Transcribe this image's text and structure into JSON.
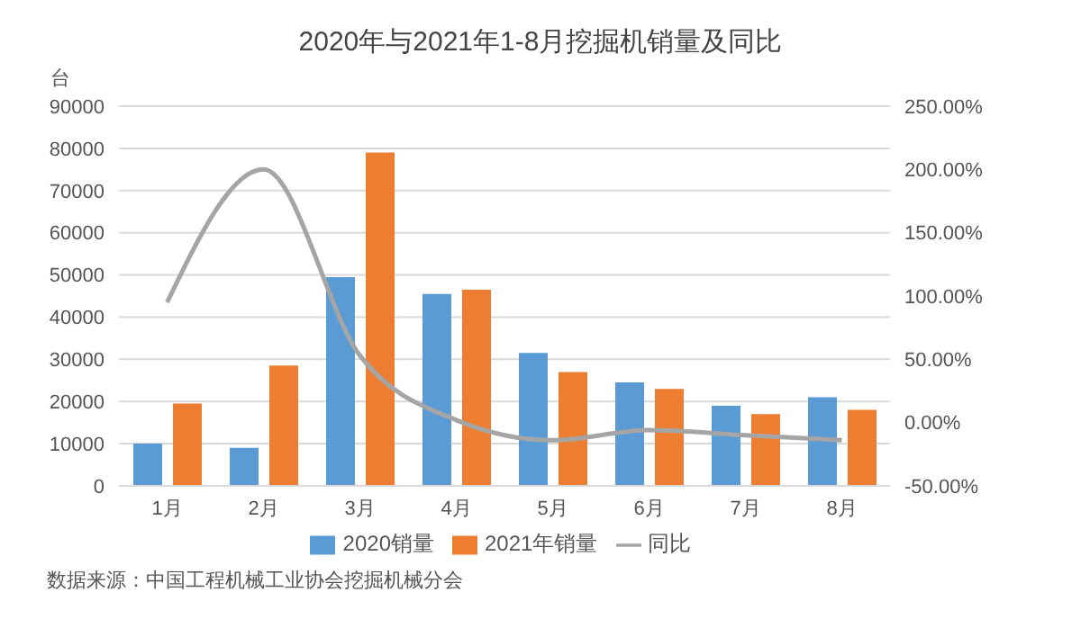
{
  "chart_data": {
    "type": "bar",
    "title": "2020年与2021年1-8月挖掘机销量及同比",
    "ylabel": "台",
    "categories": [
      "1月",
      "2月",
      "3月",
      "4月",
      "5月",
      "6月",
      "7月",
      "8月"
    ],
    "series": [
      {
        "name": "2020销量",
        "color": "#5b9bd5",
        "values": [
          10000,
          9000,
          49500,
          45500,
          31500,
          24500,
          19000,
          21000
        ]
      },
      {
        "name": "2021年销量",
        "color": "#ed7d31",
        "values": [
          19500,
          28500,
          79000,
          46500,
          27000,
          23000,
          17000,
          18000
        ]
      },
      {
        "name": "同比",
        "type": "line",
        "axis": "y2",
        "color": "#a5a5a5",
        "marker": "none",
        "values": [
          95,
          200,
          53,
          2,
          -14,
          -6,
          -10,
          -14
        ]
      }
    ],
    "ylim": [
      0,
      90000
    ],
    "yticks": [
      0,
      10000,
      20000,
      30000,
      40000,
      50000,
      60000,
      70000,
      80000,
      90000
    ],
    "y2lim": [
      -50,
      250
    ],
    "y2ticks": [
      {
        "value": -50,
        "label": "-50.00%"
      },
      {
        "value": 0,
        "label": "0.00%"
      },
      {
        "value": 50,
        "label": "50.00%"
      },
      {
        "value": 100,
        "label": "100.00%"
      },
      {
        "value": 150,
        "label": "150.00%"
      },
      {
        "value": 200,
        "label": "200.00%"
      },
      {
        "value": 250,
        "label": "250.00%"
      }
    ],
    "grid": "y",
    "legend": "bottom",
    "annotations": [
      "数据来源：中国工程机械工业协会挖掘机械分会"
    ]
  }
}
